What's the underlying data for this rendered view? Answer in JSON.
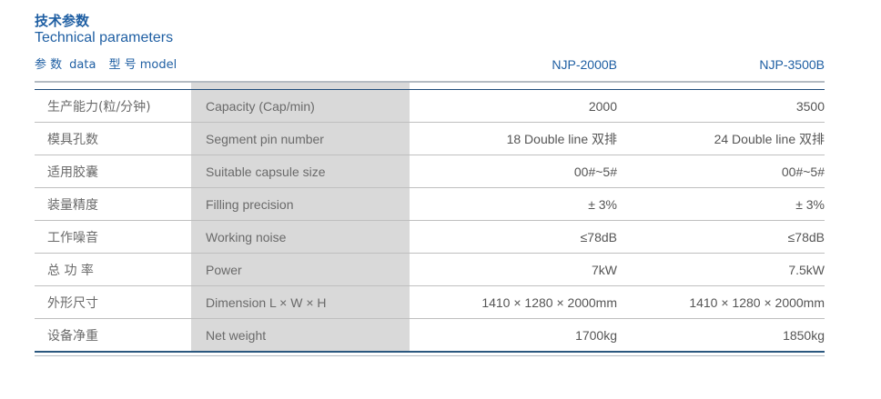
{
  "header": {
    "title_cn": "技术参数",
    "title_en": "Technical parameters",
    "param_cn": "参 数",
    "param_en": "data",
    "model_cn": "型 号",
    "model_en": "model",
    "models": [
      "NJP-2000B",
      "NJP-3500B"
    ]
  },
  "rows": [
    {
      "cn": "生产能力(粒/分钟)",
      "en": "Capacity (Cap/min)",
      "v1": "2000",
      "v2": "3500"
    },
    {
      "cn": "模具孔数",
      "en": "Segment pin number",
      "v1": "18 Double line 双排",
      "v2": "24 Double line 双排"
    },
    {
      "cn": "适用胶囊",
      "en": "Suitable capsule size",
      "v1": "00#~5#",
      "v2": "00#~5#"
    },
    {
      "cn": "装量精度",
      "en": "Filling precision",
      "v1": "± 3%",
      "v2": "± 3%"
    },
    {
      "cn": "工作噪音",
      "en": "Working noise",
      "v1": "≤78dB",
      "v2": "≤78dB"
    },
    {
      "cn": "总 功 率",
      "en": "Power",
      "v1": "7kW",
      "v2": "7.5kW"
    },
    {
      "cn": "外形尺寸",
      "en": "Dimension L × W × H",
      "v1": "1410 × 1280 × 2000mm",
      "v2": "1410 × 1280 × 2000mm"
    },
    {
      "cn": "设备净重",
      "en": "Net weight",
      "v1": "1700kg",
      "v2": "1850kg"
    }
  ]
}
